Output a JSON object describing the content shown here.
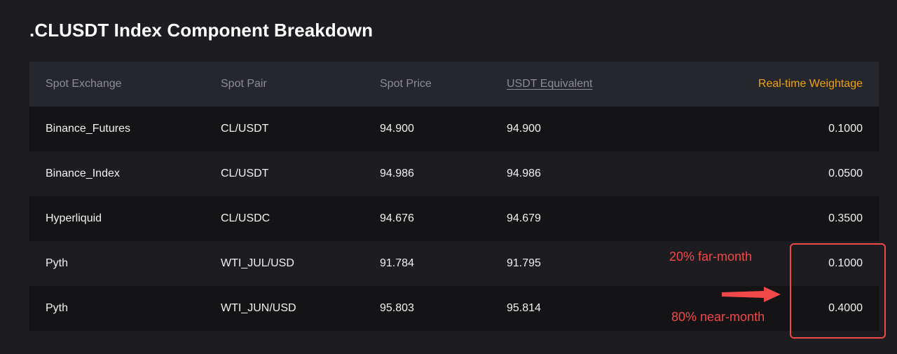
{
  "title": ".CLUSDT Index Component Breakdown",
  "colors": {
    "background": "#1c1c21",
    "header_bg": "#26272c",
    "accent_orange": "#f0a20e",
    "annotation_red": "#f04848"
  },
  "table": {
    "headers": {
      "exchange": "Spot Exchange",
      "pair": "Spot Pair",
      "price": "Spot Price",
      "usdt": "USDT Equivalent",
      "weight": "Real-time Weightage"
    },
    "rows": [
      {
        "exchange": "Binance_Futures",
        "pair": "CL/USDT",
        "price": "94.900",
        "usdt": "94.900",
        "weight": "0.1000"
      },
      {
        "exchange": "Binance_Index",
        "pair": "CL/USDT",
        "price": "94.986",
        "usdt": "94.986",
        "weight": "0.0500"
      },
      {
        "exchange": "Hyperliquid",
        "pair": "CL/USDC",
        "price": "94.676",
        "usdt": "94.679",
        "weight": "0.3500"
      },
      {
        "exchange": "Pyth",
        "pair": "WTI_JUL/USD",
        "price": "91.784",
        "usdt": "91.795",
        "weight": "0.1000"
      },
      {
        "exchange": "Pyth",
        "pair": "WTI_JUN/USD",
        "price": "95.803",
        "usdt": "95.814",
        "weight": "0.4000"
      }
    ]
  },
  "annotations": {
    "far_month": "20% far-month",
    "near_month": "80% near-month",
    "arrow_icon": "right-arrow-icon"
  }
}
